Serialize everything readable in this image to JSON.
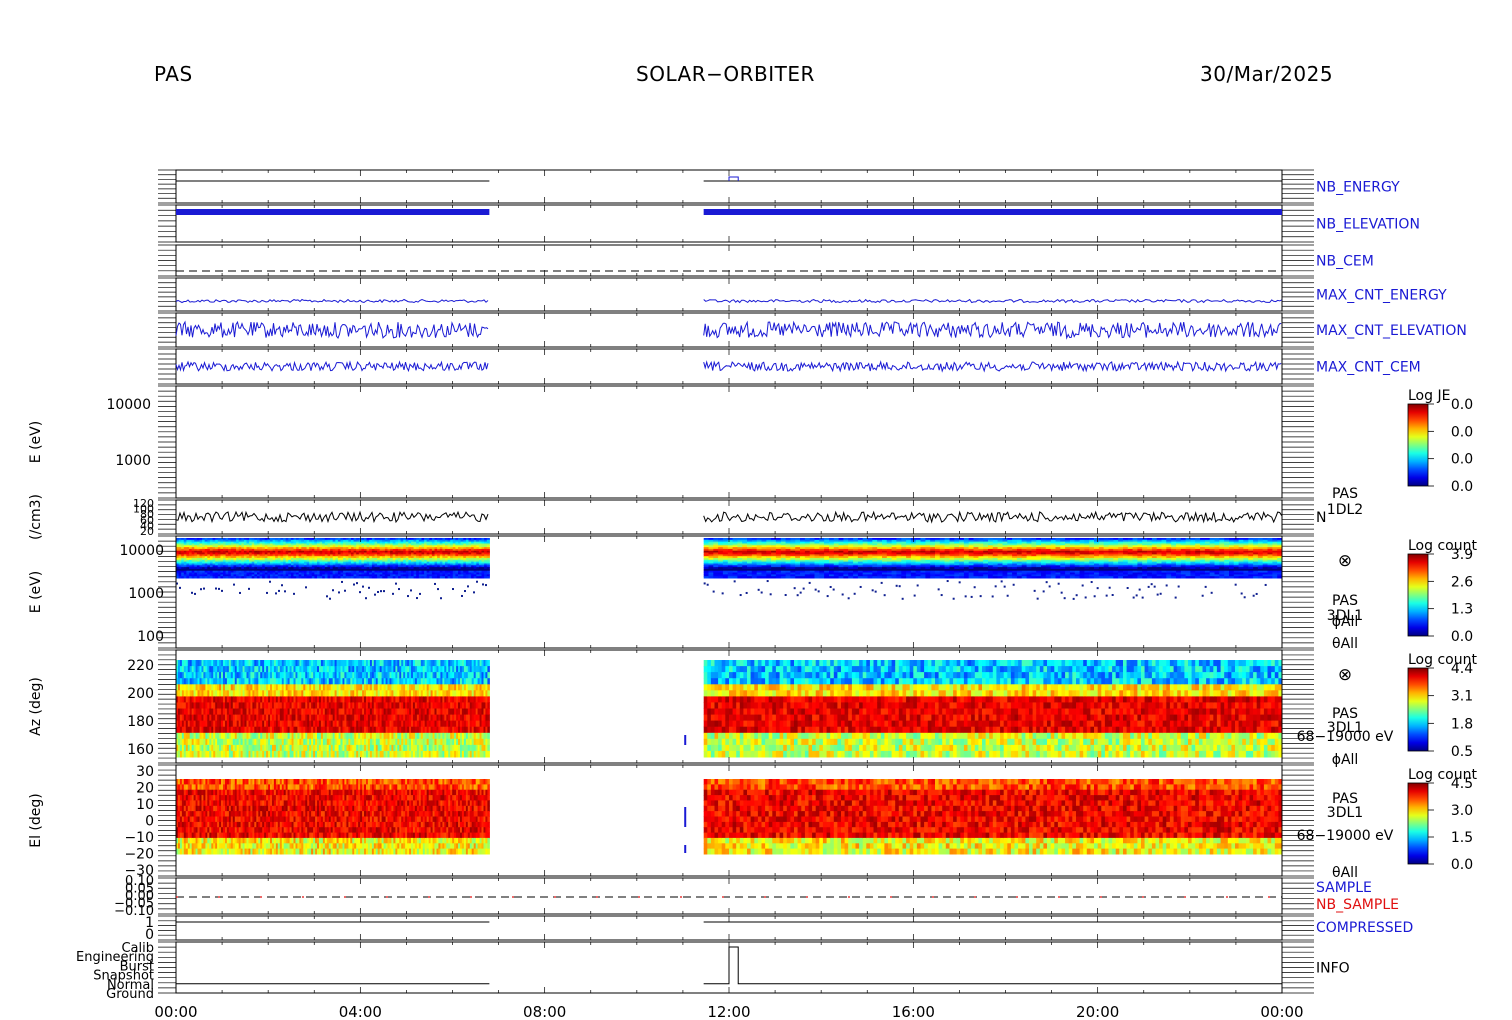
{
  "header": {
    "left": "PAS",
    "center": "SOLAR−ORBITER",
    "right": "30/Mar/2025"
  },
  "colors": {
    "blue": "#1a1ad4",
    "red": "#e01010",
    "black": "#000000"
  },
  "chart_data": {
    "type": "heatmap",
    "x_ticks": [
      "00:00",
      "04:00",
      "08:00",
      "12:00",
      "16:00",
      "20:00",
      "00:00"
    ],
    "x_range_hours": [
      0,
      24
    ],
    "data_gap_hours": [
      6.8,
      11.45
    ],
    "panels": [
      {
        "label": "NB_ENERGY",
        "label_color": "#1a1ad4",
        "kind": "hk_line"
      },
      {
        "label": "NB_ELEVATION",
        "label_color": "#1a1ad4",
        "kind": "hk_dense"
      },
      {
        "label": "NB_CEM",
        "label_color": "#1a1ad4",
        "kind": "hk_dashed"
      },
      {
        "label": "MAX_CNT_ENERGY",
        "label_color": "#1a1ad4",
        "kind": "hk_noise_low"
      },
      {
        "label": "MAX_CNT_ELEVATION",
        "label_color": "#1a1ad4",
        "kind": "hk_noise_wide"
      },
      {
        "label": "MAX_CNT_CEM",
        "label_color": "#1a1ad4",
        "kind": "hk_noise_mid"
      },
      {
        "ylabel": "E (eV)",
        "kind": "spectrogram_empty",
        "y_ticks": [
          "10000",
          "1000"
        ],
        "colorbar": {
          "title": "Log JE",
          "ticks": [
            "0.0",
            "0.0",
            "0.0",
            "0.0"
          ]
        }
      },
      {
        "ylabel": "(/cm3)",
        "kind": "density_line",
        "y_ticks": [
          "120",
          "100",
          "80",
          "60",
          "40",
          "20"
        ],
        "side_labels": [
          "PAS",
          "1DL2",
          "N"
        ]
      },
      {
        "ylabel": "E (eV)",
        "kind": "spectrogram_energy",
        "y_ticks": [
          "10000",
          "1000",
          "100"
        ],
        "colorbar": {
          "title": "Log count",
          "ticks": [
            "3.9",
            "2.6",
            "1.3",
            "0.0"
          ]
        },
        "side_labels": [
          "⊗",
          "PAS",
          "3DL1",
          "ϕAll",
          "θAll"
        ]
      },
      {
        "ylabel": "Az (deg)",
        "kind": "spectrogram_az",
        "y_ticks": [
          "220",
          "200",
          "180",
          "160"
        ],
        "colorbar": {
          "title": "Log count",
          "ticks": [
            "4.4",
            "3.1",
            "1.8",
            "0.5"
          ]
        },
        "side_labels": [
          "⊗",
          "PAS",
          "3DL1",
          "68−19000 eV",
          "ϕAll"
        ]
      },
      {
        "ylabel": "El (deg)",
        "kind": "spectrogram_el",
        "y_ticks": [
          "30",
          "20",
          "10",
          "0",
          "−10",
          "−20",
          "−30"
        ],
        "colorbar": {
          "title": "Log count",
          "ticks": [
            "4.5",
            "3.0",
            "1.5",
            "0.0"
          ]
        },
        "side_labels": [
          "PAS",
          "3DL1",
          "68−19000 eV",
          "θAll"
        ]
      },
      {
        "kind": "sample_lines",
        "y_ticks": [
          "0.10",
          "0.05",
          "0.00",
          "−0.05",
          "−0.10"
        ],
        "labels": [
          {
            "text": "SAMPLE",
            "color": "#1a1ad4"
          },
          {
            "text": "NB_SAMPLE",
            "color": "#e01010"
          }
        ]
      },
      {
        "kind": "compressed",
        "y_ticks": [
          "1",
          "0"
        ],
        "label": "COMPRESSED",
        "label_color": "#1a1ad4"
      },
      {
        "kind": "info_mode",
        "y_ticks": [
          "Calib",
          "Engineering",
          "Burst",
          "Snapshot",
          "Normal",
          "Ground"
        ],
        "label": "INFO",
        "label_color": "#000000"
      }
    ]
  }
}
